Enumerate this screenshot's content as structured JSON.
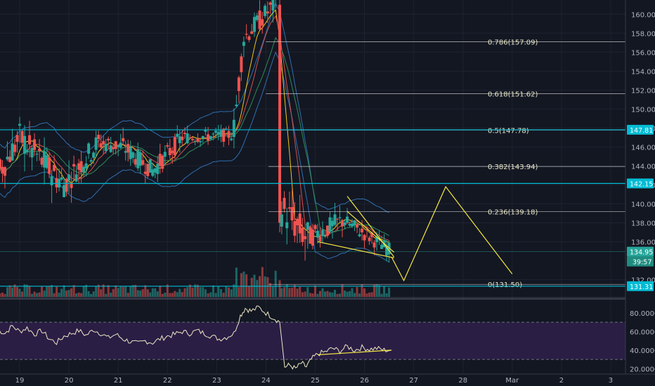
{
  "colors": {
    "background": "#131722",
    "grid": "#1e2330",
    "axis_text": "#b2b5be",
    "bull": "#26a69a",
    "bear": "#ef5350",
    "fib": "#c9c9c9",
    "horizontal_level": "#00bcd4",
    "projection": "#f5e642",
    "rsi_band": "#2a1e45",
    "rsi_line": "#efe9c6"
  },
  "chart_data": {
    "type": "candlestick",
    "timeframe_labels": [
      "19",
      "20",
      "21",
      "22",
      "23",
      "24",
      "25",
      "26",
      "27",
      "28",
      "Mar",
      "2",
      "3"
    ],
    "price_axis": {
      "range": [
        131.0,
        161.5
      ],
      "ticks": [
        "160.00",
        "158.00",
        "156.00",
        "154.00",
        "152.00",
        "150.00",
        "148.00",
        "146.00",
        "144.00",
        "142.00",
        "140.00",
        "138.00",
        "136.00",
        "132.00"
      ]
    },
    "horizontal_levels": [
      {
        "label": "147.81",
        "value": 147.81
      },
      {
        "label": "142.15",
        "value": 142.15
      },
      {
        "label": "131.31",
        "value": 131.31
      }
    ],
    "current_price": {
      "label": "134.95",
      "value": 134.95,
      "countdown": "39:57"
    },
    "fibonacci": [
      {
        "label": "0.786(157.09)",
        "value": 157.09
      },
      {
        "label": "0.618(151.62)",
        "value": 151.62
      },
      {
        "label": "0.5(147.78)",
        "value": 147.78
      },
      {
        "label": "0.382(143.94)",
        "value": 143.94
      },
      {
        "label": "0.236(139.18)",
        "value": 139.18
      },
      {
        "label": "0(131.50)",
        "value": 131.5
      }
    ],
    "projection_path": [
      {
        "day": 26.55,
        "price": 134.4
      },
      {
        "day": 26.8,
        "price": 131.9
      },
      {
        "day": 27.65,
        "price": 141.8
      },
      {
        "day": 29.0,
        "price": 132.6
      }
    ],
    "rsi": {
      "ticks": [
        "80.0000",
        "60.0000",
        "40.0000",
        "20.0000"
      ],
      "range": [
        15,
        92
      ],
      "band": [
        30,
        70
      ],
      "series": [
        {
          "day": 18.55,
          "value": 62
        },
        {
          "day": 18.7,
          "value": 58
        },
        {
          "day": 18.85,
          "value": 66
        },
        {
          "day": 19.0,
          "value": 60
        },
        {
          "day": 19.15,
          "value": 64
        },
        {
          "day": 19.3,
          "value": 57
        },
        {
          "day": 19.45,
          "value": 61
        },
        {
          "day": 19.6,
          "value": 52
        },
        {
          "day": 19.75,
          "value": 48
        },
        {
          "day": 19.9,
          "value": 55
        },
        {
          "day": 20.05,
          "value": 58
        },
        {
          "day": 20.2,
          "value": 61
        },
        {
          "day": 20.35,
          "value": 56
        },
        {
          "day": 20.5,
          "value": 62
        },
        {
          "day": 20.65,
          "value": 58
        },
        {
          "day": 20.8,
          "value": 53
        },
        {
          "day": 20.95,
          "value": 57
        },
        {
          "day": 21.1,
          "value": 52
        },
        {
          "day": 21.25,
          "value": 49
        },
        {
          "day": 21.4,
          "value": 47
        },
        {
          "day": 21.55,
          "value": 50
        },
        {
          "day": 21.7,
          "value": 48
        },
        {
          "day": 21.85,
          "value": 52
        },
        {
          "day": 22.0,
          "value": 55
        },
        {
          "day": 22.15,
          "value": 57
        },
        {
          "day": 22.3,
          "value": 60
        },
        {
          "day": 22.45,
          "value": 58
        },
        {
          "day": 22.6,
          "value": 61
        },
        {
          "day": 22.75,
          "value": 58
        },
        {
          "day": 22.9,
          "value": 55
        },
        {
          "day": 23.05,
          "value": 52
        },
        {
          "day": 23.2,
          "value": 54
        },
        {
          "day": 23.35,
          "value": 58
        },
        {
          "day": 23.48,
          "value": 77
        },
        {
          "day": 23.58,
          "value": 85
        },
        {
          "day": 23.7,
          "value": 82
        },
        {
          "day": 23.85,
          "value": 86
        },
        {
          "day": 24.0,
          "value": 80
        },
        {
          "day": 24.15,
          "value": 75
        },
        {
          "day": 24.28,
          "value": 70
        },
        {
          "day": 24.38,
          "value": 22
        },
        {
          "day": 24.48,
          "value": 24
        },
        {
          "day": 24.6,
          "value": 20
        },
        {
          "day": 24.72,
          "value": 26
        },
        {
          "day": 24.82,
          "value": 22
        },
        {
          "day": 24.92,
          "value": 30
        },
        {
          "day": 25.05,
          "value": 36
        },
        {
          "day": 25.2,
          "value": 38
        },
        {
          "day": 25.35,
          "value": 42
        },
        {
          "day": 25.5,
          "value": 39
        },
        {
          "day": 25.65,
          "value": 44
        },
        {
          "day": 25.8,
          "value": 40
        },
        {
          "day": 25.95,
          "value": 43
        },
        {
          "day": 26.1,
          "value": 41
        },
        {
          "day": 26.25,
          "value": 42
        },
        {
          "day": 26.4,
          "value": 40
        },
        {
          "day": 26.55,
          "value": 40
        }
      ],
      "divergence_line": [
        {
          "day": 25.05,
          "value": 35
        },
        {
          "day": 26.55,
          "value": 40
        }
      ]
    }
  }
}
